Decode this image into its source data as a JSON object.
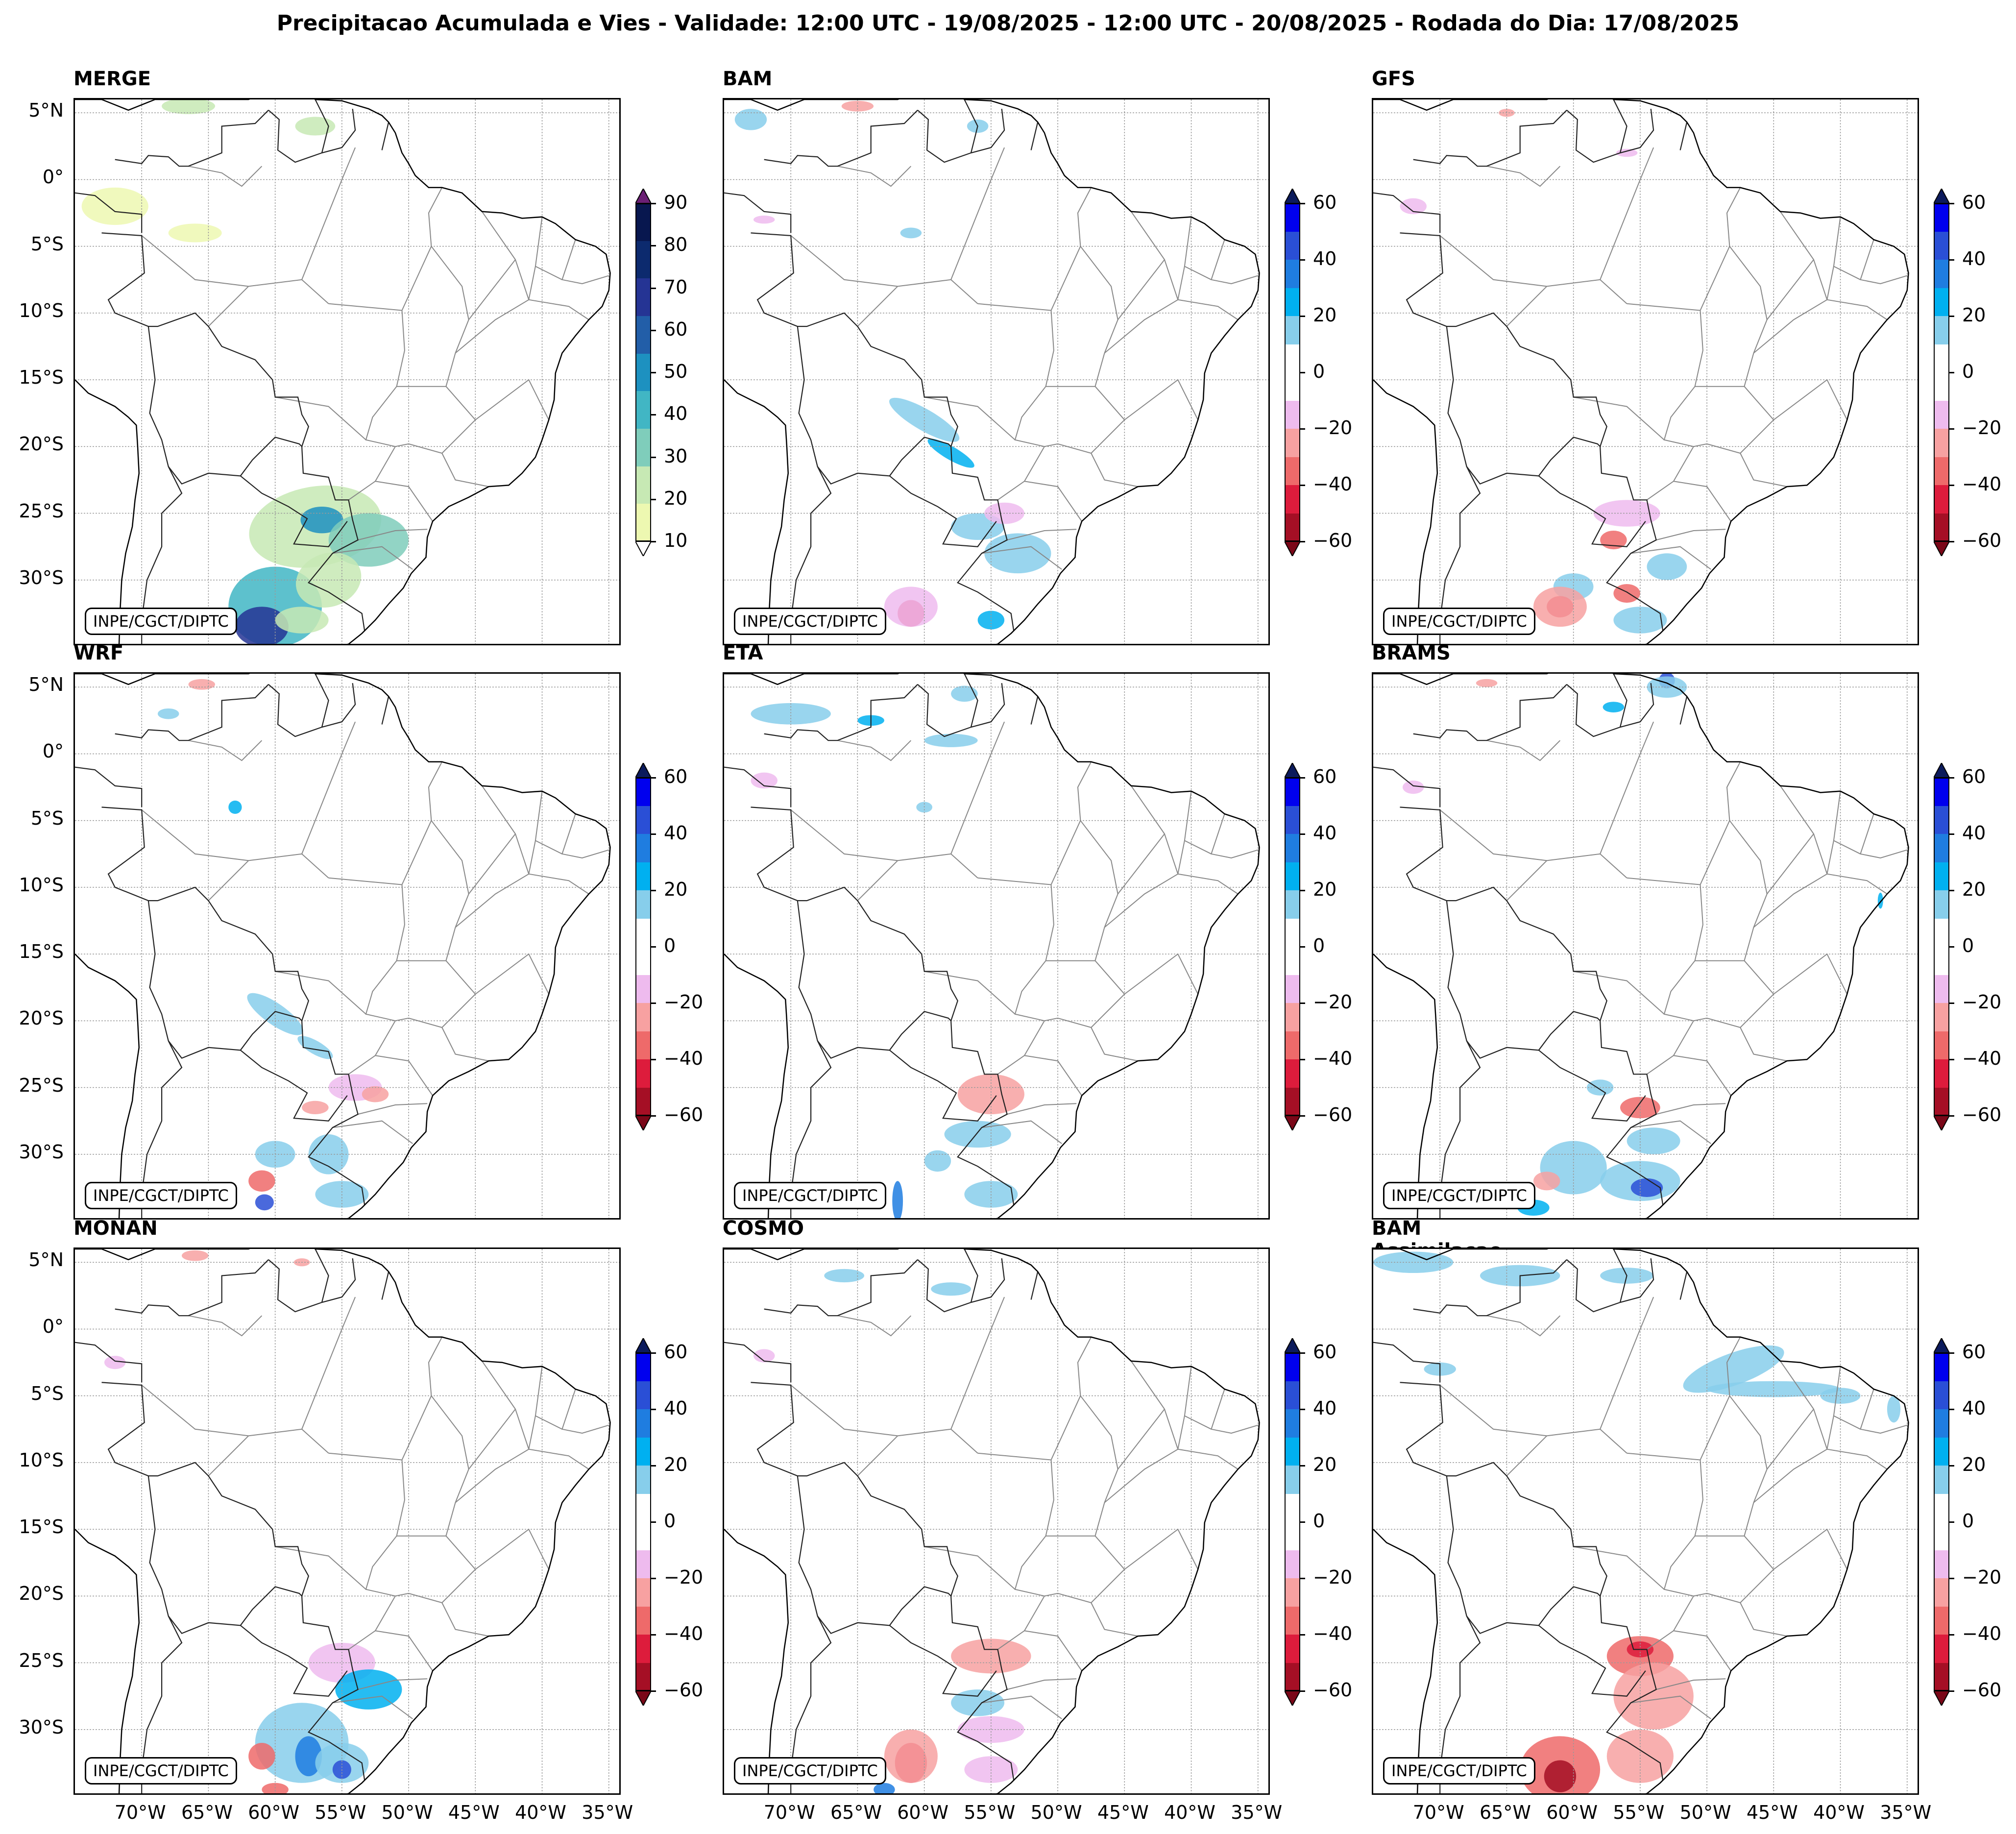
{
  "figure": {
    "title": "Precipitacao Acumulada e Vies - Validade: 12:00 UTC - 19/08/2025 - 12:00 UTC - 20/08/2025 - Rodada do Dia: 17/08/2025",
    "credit": "INPE/CGCT/DIPTC"
  },
  "axes": {
    "lat_labels": [
      "5°N",
      "0°",
      "5°S",
      "10°S",
      "15°S",
      "20°S",
      "25°S",
      "30°S"
    ],
    "lon_labels": [
      "70°W",
      "65°W",
      "60°W",
      "55°W",
      "50°W",
      "45°W",
      "40°W",
      "35°W"
    ]
  },
  "panels": [
    {
      "title": "MERGE",
      "kind": "precip"
    },
    {
      "title": "BAM",
      "kind": "bias"
    },
    {
      "title": "GFS",
      "kind": "bias"
    },
    {
      "title": "WRF",
      "kind": "bias"
    },
    {
      "title": "ETA",
      "kind": "bias"
    },
    {
      "title": "BRAMS",
      "kind": "bias"
    },
    {
      "title": "MONAN",
      "kind": "bias"
    },
    {
      "title": "COSMO",
      "kind": "bias"
    },
    {
      "title": "BAM Assimilacao",
      "kind": "bias"
    }
  ],
  "colorbars": {
    "precip": {
      "ticks": [
        "90",
        "80",
        "70",
        "60",
        "50",
        "40",
        "30",
        "20",
        "10"
      ],
      "colors": [
        "#08174f",
        "#0c2a6e",
        "#253494",
        "#225ea8",
        "#1d91c0",
        "#41b6c4",
        "#7fcdbb",
        "#c7e9b4",
        "#edf8b1"
      ],
      "over_color": "#6a1f74",
      "under_color": "#ffffff"
    },
    "bias": {
      "ticks": [
        "60",
        "40",
        "20",
        "0",
        "−20",
        "−40",
        "−60"
      ],
      "colors": [
        "#0000ee",
        "#2a4fd6",
        "#1f7de0",
        "#00b0f0",
        "#87ceeb",
        "#ffffff",
        "#ffffff",
        "#eebbee",
        "#f7a1a1",
        "#ee6a6a",
        "#dd1c3c",
        "#a50f25"
      ],
      "over_color": "#0b1a5c",
      "under_color": "#7a0718"
    }
  },
  "chart_data": {
    "type": "map_grid",
    "title": "Precipitacao Acumulada e Vies - Validade: 12:00 UTC - 19/08/2025 - 12:00 UTC - 20/08/2025 - Rodada do Dia: 17/08/2025",
    "lon_range": [
      -75,
      -34
    ],
    "lat_range": [
      -35,
      6
    ],
    "colorbar_precip_range": [
      10,
      90
    ],
    "colorbar_bias_range": [
      -60,
      60
    ],
    "highlights": [
      {
        "panel": "MERGE",
        "note": "10–90 mm over Paraguay, southern Brazil, Argentina/Uruguay"
      },
      {
        "panel": "BAM",
        "note": "positive bias along Bolivia–Paraguay band"
      },
      {
        "panel": "BAM Assimilacao",
        "note": "positive bias north-east coast, negative bias south"
      }
    ]
  }
}
